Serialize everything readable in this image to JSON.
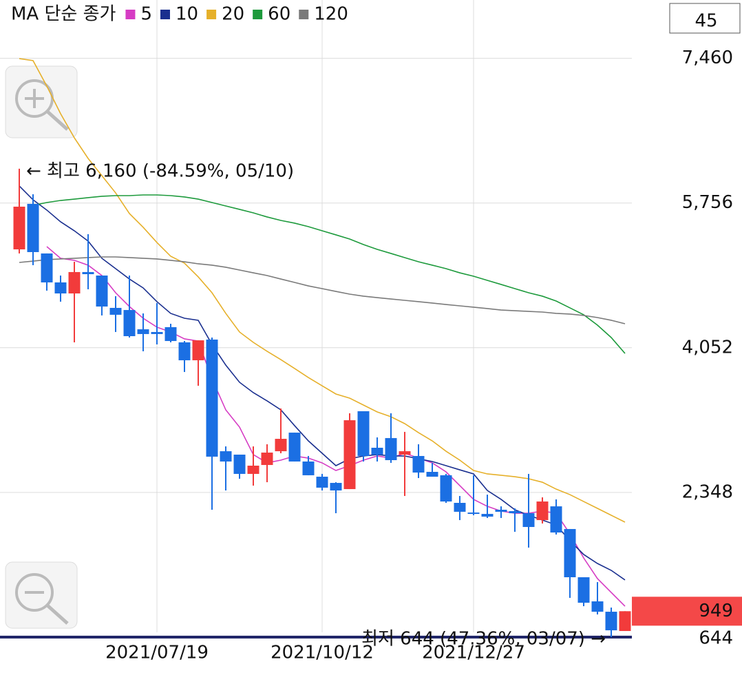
{
  "chart_data": {
    "type": "candlestick",
    "title": "MA 단순 종가",
    "period": 45,
    "categories": [
      null,
      null,
      null,
      null,
      null,
      null,
      null,
      null,
      null,
      null,
      "2021/07/19",
      null,
      null,
      null,
      null,
      null,
      null,
      null,
      null,
      null,
      null,
      null,
      "2021/10/12",
      null,
      null,
      null,
      null,
      null,
      null,
      null,
      null,
      null,
      null,
      "2021/12/27",
      null,
      null,
      null,
      null,
      null,
      null,
      null,
      null,
      null,
      null,
      null
    ],
    "open": [
      5210,
      5746,
      5162,
      4821,
      4691,
      4943,
      4902,
      4521,
      4496,
      4269,
      4237,
      4294,
      4115,
      3904,
      4148,
      2833,
      2793,
      2566,
      2671,
      2833,
      3052,
      2712,
      2533,
      2460,
      2387,
      3304,
      2874,
      2988,
      2793,
      2777,
      2590,
      2550,
      2225,
      2111,
      2095,
      2144,
      2128,
      2103,
      2022,
      2184,
      1917,
      1349,
      1065,
      943,
      716
    ],
    "high": [
      6160,
      5859,
      5162,
      4902,
      5064,
      5389,
      4902,
      4659,
      4902,
      4456,
      4578,
      4334,
      4131,
      4139,
      4172,
      2890,
      2793,
      2890,
      2915,
      3336,
      3052,
      2777,
      2566,
      2468,
      3280,
      3304,
      2996,
      3280,
      3061,
      2915,
      2696,
      2566,
      2306,
      2550,
      2322,
      2184,
      2160,
      2566,
      2290,
      2266,
      1917,
      1349,
      1292,
      992,
      949
    ],
    "low": [
      5162,
      5024,
      4724,
      4594,
      4115,
      4740,
      4432,
      4237,
      4172,
      4010,
      4091,
      4115,
      3766,
      3604,
      2144,
      2371,
      2509,
      2428,
      2468,
      2809,
      2712,
      2550,
      2371,
      2103,
      2387,
      2712,
      2712,
      2696,
      2306,
      2517,
      2533,
      2225,
      2022,
      2079,
      2047,
      2047,
      1884,
      1698,
      1982,
      1852,
      1106,
      1008,
      911,
      644,
      716
    ],
    "close": [
      5713,
      5178,
      4821,
      4691,
      4943,
      4918,
      4537,
      4440,
      4188,
      4213,
      4213,
      4131,
      3904,
      4139,
      2769,
      2712,
      2566,
      2663,
      2817,
      2979,
      2712,
      2550,
      2404,
      2371,
      3198,
      2777,
      2793,
      2728,
      2833,
      2582,
      2533,
      2241,
      2120,
      2095,
      2063,
      2120,
      2103,
      1941,
      2241,
      1876,
      1349,
      1049,
      943,
      724,
      949
    ],
    "up_color": "#f23b3b",
    "down_color": "#1b6fe3",
    "ma_series": [
      {
        "name": "5",
        "color": "#d63cc4",
        "values": [
          null,
          null,
          5243,
          5105,
          5081,
          5024,
          4902,
          4699,
          4537,
          4399,
          4294,
          4237,
          4156,
          4131,
          3685,
          3320,
          3117,
          2793,
          2696,
          2728,
          2777,
          2752,
          2696,
          2606,
          2663,
          2728,
          2777,
          2752,
          2809,
          2752,
          2696,
          2590,
          2428,
          2266,
          2184,
          2128,
          2103,
          2103,
          2128,
          2103,
          1860,
          1576,
          1333,
          1170,
          1008
        ]
      },
      {
        "name": "10",
        "color": "#1a2f8f",
        "values": [
          5957,
          5794,
          5673,
          5535,
          5429,
          5308,
          5105,
          4983,
          4861,
          4756,
          4594,
          4456,
          4399,
          4375,
          4091,
          3847,
          3645,
          3523,
          3426,
          3320,
          3134,
          2955,
          2809,
          2663,
          2744,
          2777,
          2793,
          2777,
          2777,
          2744,
          2712,
          2663,
          2614,
          2566,
          2371,
          2266,
          2144,
          2079,
          2022,
          1965,
          1779,
          1617,
          1511,
          1430,
          1317
        ]
      },
      {
        "name": "20",
        "color": "#e6b02a",
        "values": [
          7457,
          7433,
          7133,
          6808,
          6524,
          6281,
          6078,
          5875,
          5632,
          5470,
          5291,
          5129,
          5048,
          4886,
          4699,
          4456,
          4237,
          4115,
          4010,
          3912,
          3807,
          3701,
          3604,
          3507,
          3458,
          3377,
          3296,
          3239,
          3158,
          3052,
          2955,
          2833,
          2728,
          2606,
          2566,
          2550,
          2533,
          2509,
          2468,
          2387,
          2322,
          2241,
          2160,
          2079,
          1998
        ]
      },
      {
        "name": "60",
        "color": "#1d9a3c",
        "values": [
          null,
          5729,
          5762,
          5786,
          5802,
          5819,
          5835,
          5843,
          5843,
          5851,
          5851,
          5843,
          5827,
          5802,
          5762,
          5721,
          5681,
          5640,
          5592,
          5551,
          5519,
          5478,
          5429,
          5381,
          5332,
          5267,
          5210,
          5162,
          5113,
          5064,
          5024,
          4983,
          4934,
          4894,
          4845,
          4797,
          4748,
          4699,
          4659,
          4602,
          4521,
          4440,
          4318,
          4172,
          3985
        ]
      },
      {
        "name": "120",
        "color": "#7a7a7a",
        "values": [
          5056,
          5072,
          5089,
          5097,
          5105,
          5113,
          5121,
          5121,
          5113,
          5105,
          5097,
          5081,
          5064,
          5040,
          5024,
          5000,
          4967,
          4934,
          4902,
          4861,
          4821,
          4780,
          4748,
          4715,
          4683,
          4659,
          4642,
          4626,
          4610,
          4594,
          4578,
          4561,
          4545,
          4529,
          4513,
          4496,
          4488,
          4480,
          4472,
          4456,
          4448,
          4432,
          4407,
          4375,
          4334
        ]
      }
    ],
    "ylim": [
      700,
      7660
    ],
    "yticks": [
      {
        "value": 7460,
        "label": "7,460"
      },
      {
        "value": 5756,
        "label": "5,756"
      },
      {
        "value": 4052,
        "label": "4,052"
      },
      {
        "value": 2348,
        "label": "2,348"
      },
      644
    ],
    "grid": true,
    "high_annotation": "← 최고 6,160 (-84.59%, 05/10)",
    "low_annotation": "최저 644 (47.36%, 03/07) →"
  }
}
